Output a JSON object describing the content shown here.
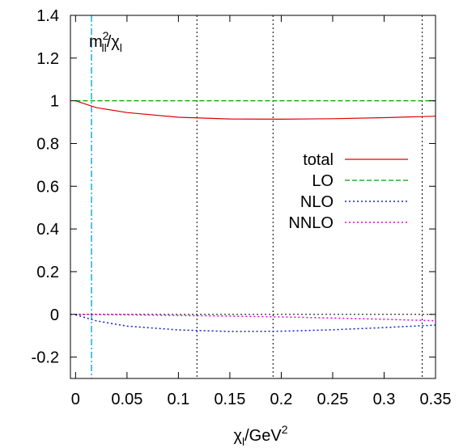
{
  "chart_data": {
    "type": "line",
    "title": "",
    "annotation": {
      "main": "m",
      "sup": "2",
      "sub_main": "ll",
      "denom": "/χ",
      "denom_sub": "l"
    },
    "xlabel": {
      "main": "χ",
      "sub": "l",
      "rest": "/GeV",
      "sup": "2"
    },
    "ylabel": "",
    "xlim": [
      -0.005,
      0.35
    ],
    "ylim": [
      -0.3,
      1.4
    ],
    "xticks": [
      "0",
      "0.05",
      "0.1",
      "0.15",
      "0.2",
      "0.25",
      "0.3",
      "0.35"
    ],
    "xtick_values": [
      0,
      0.05,
      0.1,
      0.15,
      0.2,
      0.25,
      0.3,
      0.35
    ],
    "yticks": [
      "-0.2",
      "0",
      "0.2",
      "0.4",
      "0.6",
      "0.8",
      "1",
      "1.2",
      "1.4"
    ],
    "ytick_values": [
      -0.2,
      0,
      0.2,
      0.4,
      0.6,
      0.8,
      1,
      1.2,
      1.4
    ],
    "vertical_lines": [
      {
        "x": 0.0155,
        "style": "dashdot",
        "color": "#1fb5e0"
      },
      {
        "x": 0.118,
        "style": "dotted",
        "color": "#000000"
      },
      {
        "x": 0.192,
        "style": "dotted",
        "color": "#000000"
      },
      {
        "x": 0.337,
        "style": "dotted",
        "color": "#000000"
      }
    ],
    "zero_line": {
      "y": 0,
      "style": "dotted",
      "color": "#000000"
    },
    "legend": {
      "placement": "right"
    },
    "series": [
      {
        "name": "total",
        "color": "#e00000",
        "style": "solid",
        "x": [
          0,
          0.02,
          0.05,
          0.1,
          0.15,
          0.2,
          0.25,
          0.3,
          0.35
        ],
        "y": [
          1.0,
          0.968,
          0.945,
          0.923,
          0.915,
          0.914,
          0.916,
          0.921,
          0.928
        ]
      },
      {
        "name": "LO",
        "color": "#00a000",
        "style": "dashed",
        "x": [
          0,
          0.35
        ],
        "y": [
          1.0,
          1.0
        ]
      },
      {
        "name": "NLO",
        "color": "#1020d0",
        "style": "dotted",
        "x": [
          0,
          0.02,
          0.05,
          0.1,
          0.15,
          0.2,
          0.25,
          0.3,
          0.35
        ],
        "y": [
          -0.002,
          -0.03,
          -0.055,
          -0.073,
          -0.08,
          -0.079,
          -0.072,
          -0.062,
          -0.05
        ]
      },
      {
        "name": "NNLO",
        "color": "#e000e0",
        "style": "dotted",
        "x": [
          0,
          0.05,
          0.1,
          0.15,
          0.2,
          0.25,
          0.3,
          0.35
        ],
        "y": [
          0.0,
          -0.002,
          -0.005,
          -0.008,
          -0.012,
          -0.017,
          -0.023,
          -0.03
        ]
      }
    ]
  }
}
